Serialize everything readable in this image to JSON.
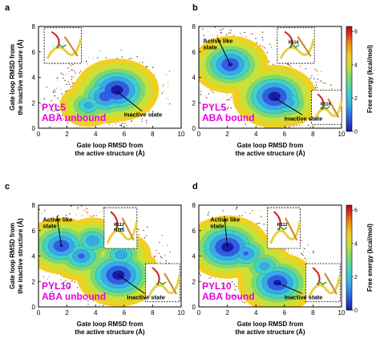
{
  "colors": {
    "energy_scale": [
      "#1a1aa8",
      "#2f5fe0",
      "#3aa8e8",
      "#40d2c8",
      "#7cd872",
      "#c8e038",
      "#f0d020",
      "#f08a18",
      "#e02818",
      "#b00c0c"
    ],
    "system_label": "#e800e8"
  },
  "colorbar": {
    "label": "Free energy (kcal/mol)",
    "ticks": [
      "0",
      "2",
      "4",
      "6"
    ],
    "range": [
      0,
      6.3
    ]
  },
  "chart_data": [
    {
      "type": "heatmap",
      "panel": "a",
      "xlabel": "Gate loop RMSD from\nthe active structure (Å)",
      "ylabel": "Gate loop RMSD from\nthe inactive structure (Å)",
      "xlim": [
        0,
        10
      ],
      "ylim": [
        0,
        8
      ],
      "xticks": [
        0,
        2,
        4,
        6,
        8,
        10
      ],
      "yticks": [
        0,
        2,
        4,
        6,
        8
      ],
      "system": [
        "PYL5",
        "ABA unbound"
      ],
      "annotations": [
        {
          "text": "Inactive state",
          "x": 5.5,
          "y": 2.9
        }
      ],
      "insets": [
        {
          "residues": []
        }
      ],
      "basins": [
        {
          "x": 5.5,
          "y": 3.0,
          "depth": 0.0
        },
        {
          "x": 4.7,
          "y": 2.5,
          "depth": 0.8
        },
        {
          "x": 3.5,
          "y": 1.8,
          "depth": 1.8
        }
      ]
    },
    {
      "type": "heatmap",
      "panel": "b",
      "xlabel": "Gate loop RMSD from\nthe active structure (Å)",
      "ylabel": "",
      "xlim": [
        0,
        10
      ],
      "ylim": [
        0,
        8
      ],
      "xticks": [
        0,
        2,
        4,
        6,
        8,
        10
      ],
      "yticks": [
        0,
        2,
        4,
        6,
        8
      ],
      "system": [
        "PYL5",
        "ABA bound"
      ],
      "annotations": [
        {
          "text": "Active like\nstate",
          "x": 2.2,
          "y": 5.0
        },
        {
          "text": "Inactive state",
          "x": 5.3,
          "y": 2.4
        }
      ],
      "insets": [
        {
          "residues": [
            "R116"
          ]
        },
        {
          "residues": [
            "R116"
          ]
        }
      ],
      "basins": [
        {
          "x": 2.2,
          "y": 5.0,
          "depth": 0.5
        },
        {
          "x": 5.3,
          "y": 2.5,
          "depth": 0.0
        },
        {
          "x": 6.2,
          "y": 2.0,
          "depth": 1.5
        }
      ]
    },
    {
      "type": "heatmap",
      "panel": "c",
      "xlabel": "Gate loop RMSD from\nthe active structure (Å)",
      "ylabel": "Gate loop RMSD from\nthe inactive structure (Å)",
      "xlim": [
        0,
        10
      ],
      "ylim": [
        0,
        8
      ],
      "xticks": [
        0,
        2,
        4,
        6,
        8,
        10
      ],
      "yticks": [
        0,
        2,
        4,
        6,
        8
      ],
      "system": [
        "PYL10",
        "ABA unbound"
      ],
      "annotations": [
        {
          "text": "Active like\nstate",
          "x": 1.6,
          "y": 4.8
        },
        {
          "text": "Inactive state",
          "x": 5.6,
          "y": 2.5
        }
      ],
      "insets": [
        {
          "residues": [
            "R112",
            "H115"
          ]
        },
        {
          "residues": []
        }
      ],
      "basins": [
        {
          "x": 1.6,
          "y": 4.8,
          "depth": 0.6
        },
        {
          "x": 3.0,
          "y": 4.0,
          "depth": 1.2
        },
        {
          "x": 3.8,
          "y": 5.2,
          "depth": 1.5
        },
        {
          "x": 5.6,
          "y": 2.5,
          "depth": 0.0
        },
        {
          "x": 5.8,
          "y": 4.1,
          "depth": 1.6
        }
      ]
    },
    {
      "type": "heatmap",
      "panel": "d",
      "xlabel": "Gate loop RMSD from\nthe active structure (Å)",
      "ylabel": "",
      "xlim": [
        0,
        10
      ],
      "ylim": [
        0,
        8
      ],
      "xticks": [
        0,
        2,
        4,
        6,
        8,
        10
      ],
      "yticks": [
        0,
        2,
        4,
        6,
        8
      ],
      "system": [
        "PYL10",
        "ABA bound"
      ],
      "annotations": [
        {
          "text": "Active like\nstate",
          "x": 2.0,
          "y": 4.7
        },
        {
          "text": "Inactive state",
          "x": 5.5,
          "y": 1.9
        }
      ],
      "insets": [
        {
          "residues": [
            "R112"
          ]
        },
        {
          "residues": []
        }
      ],
      "basins": [
        {
          "x": 2.0,
          "y": 4.7,
          "depth": 0.0
        },
        {
          "x": 3.3,
          "y": 4.2,
          "depth": 1.3
        },
        {
          "x": 5.5,
          "y": 1.9,
          "depth": 0.3
        },
        {
          "x": 4.6,
          "y": 3.2,
          "depth": 1.7
        }
      ]
    }
  ]
}
